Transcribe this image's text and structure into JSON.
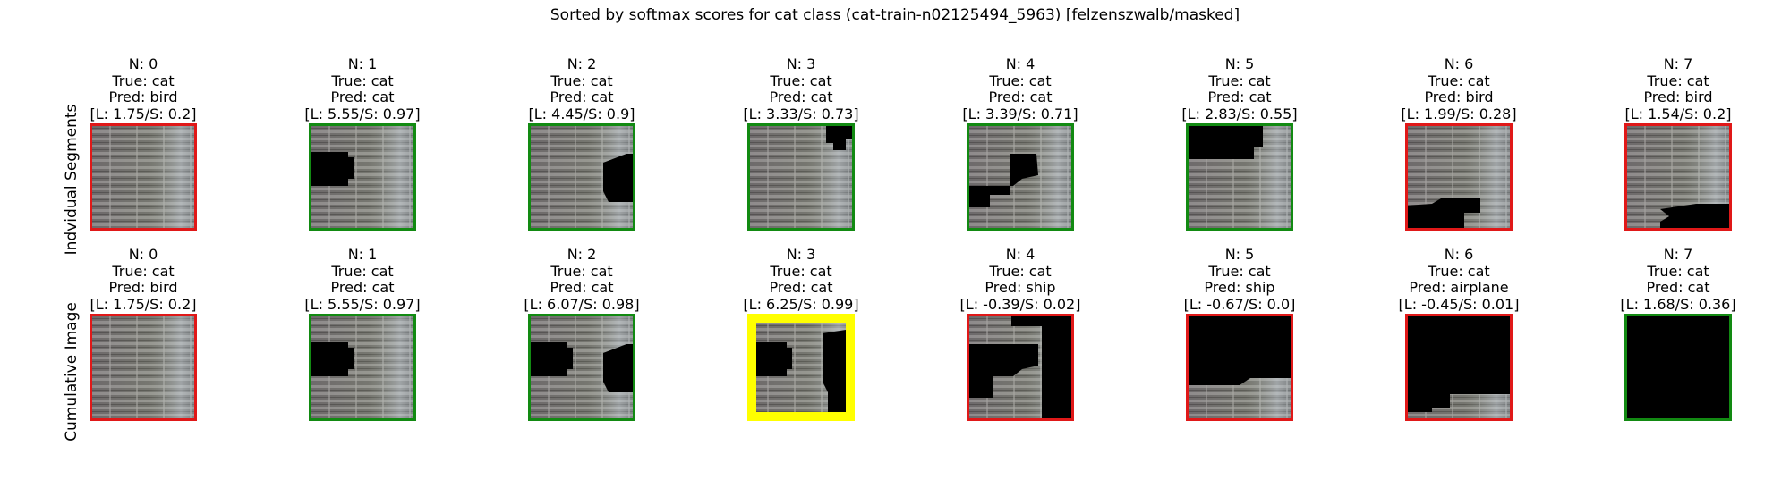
{
  "title": "Sorted by softmax scores for cat class (cat-train-n02125494_5963) [felzenszwalb/masked]",
  "row_labels": [
    "Indvidual Segments",
    "Cumulative Image"
  ],
  "colors": {
    "border_correct": "#128a12",
    "border_wrong": "#e01818",
    "border_best": "#ffff00",
    "mask": "#000000"
  },
  "chart_data": [
    {
      "type": "image-grid",
      "row": "Indvidual Segments",
      "panels": [
        {
          "n": "N: 0",
          "true": "True: cat",
          "pred": "Pred: bird",
          "scores": "[L: 1.75/S: 0.2]",
          "logit": 1.75,
          "softmax": 0.2,
          "border": "border_wrong"
        },
        {
          "n": "N: 1",
          "true": "True: cat",
          "pred": "Pred: cat",
          "scores": "[L: 5.55/S: 0.97]",
          "logit": 5.55,
          "softmax": 0.97,
          "border": "border_correct"
        },
        {
          "n": "N: 2",
          "true": "True: cat",
          "pred": "Pred: cat",
          "scores": "[L: 4.45/S: 0.9]",
          "logit": 4.45,
          "softmax": 0.9,
          "border": "border_correct"
        },
        {
          "n": "N: 3",
          "true": "True: cat",
          "pred": "Pred: cat",
          "scores": "[L: 3.33/S: 0.73]",
          "logit": 3.33,
          "softmax": 0.73,
          "border": "border_correct"
        },
        {
          "n": "N: 4",
          "true": "True: cat",
          "pred": "Pred: cat",
          "scores": "[L: 3.39/S: 0.71]",
          "logit": 3.39,
          "softmax": 0.71,
          "border": "border_correct"
        },
        {
          "n": "N: 5",
          "true": "True: cat",
          "pred": "Pred: cat",
          "scores": "[L: 2.83/S: 0.55]",
          "logit": 2.83,
          "softmax": 0.55,
          "border": "border_correct"
        },
        {
          "n": "N: 6",
          "true": "True: cat",
          "pred": "Pred: bird",
          "scores": "[L: 1.99/S: 0.28]",
          "logit": 1.99,
          "softmax": 0.28,
          "border": "border_wrong"
        },
        {
          "n": "N: 7",
          "true": "True: cat",
          "pred": "Pred: bird",
          "scores": "[L: 1.54/S: 0.2]",
          "logit": 1.54,
          "softmax": 0.2,
          "border": "border_wrong"
        }
      ]
    },
    {
      "type": "image-grid",
      "row": "Cumulative Image",
      "panels": [
        {
          "n": "N: 0",
          "true": "True: cat",
          "pred": "Pred: bird",
          "scores": "[L: 1.75/S: 0.2]",
          "logit": 1.75,
          "softmax": 0.2,
          "border": "border_wrong"
        },
        {
          "n": "N: 1",
          "true": "True: cat",
          "pred": "Pred: cat",
          "scores": "[L: 5.55/S: 0.97]",
          "logit": 5.55,
          "softmax": 0.97,
          "border": "border_correct"
        },
        {
          "n": "N: 2",
          "true": "True: cat",
          "pred": "Pred: cat",
          "scores": "[L: 6.07/S: 0.98]",
          "logit": 6.07,
          "softmax": 0.98,
          "border": "border_correct"
        },
        {
          "n": "N: 3",
          "true": "True: cat",
          "pred": "Pred: cat",
          "scores": "[L: 6.25/S: 0.99]",
          "logit": 6.25,
          "softmax": 0.99,
          "border": "border_best"
        },
        {
          "n": "N: 4",
          "true": "True: cat",
          "pred": "Pred: ship",
          "scores": "[L: -0.39/S: 0.02]",
          "logit": -0.39,
          "softmax": 0.02,
          "border": "border_wrong"
        },
        {
          "n": "N: 5",
          "true": "True: cat",
          "pred": "Pred: ship",
          "scores": "[L: -0.67/S: 0.0]",
          "logit": -0.67,
          "softmax": 0.0,
          "border": "border_wrong"
        },
        {
          "n": "N: 6",
          "true": "True: cat",
          "pred": "Pred: airplane",
          "scores": "[L: -0.45/S: 0.01]",
          "logit": -0.45,
          "softmax": 0.01,
          "border": "border_wrong"
        },
        {
          "n": "N: 7",
          "true": "True: cat",
          "pred": "Pred: cat",
          "scores": "[L: 1.68/S: 0.36]",
          "logit": 1.68,
          "softmax": 0.36,
          "border": "border_correct"
        }
      ]
    }
  ]
}
